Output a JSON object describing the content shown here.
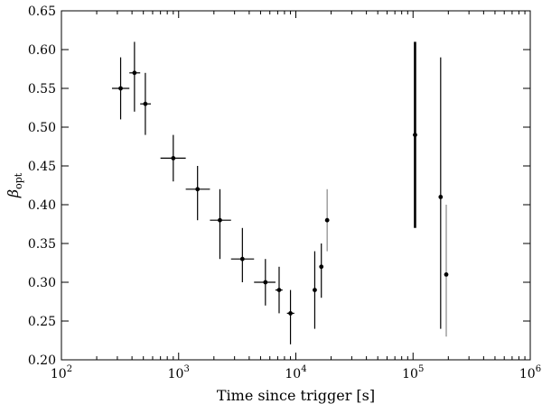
{
  "chart_data": {
    "type": "scatter",
    "xscale": "log",
    "xlim": [
      100,
      1000000
    ],
    "ylim": [
      0.2,
      0.65
    ],
    "xlabel": "Time since trigger [s]",
    "ylabel": {
      "base": "β",
      "sub": "opt"
    },
    "x_ticks": [
      {
        "base": "10",
        "exp": "2",
        "value": 100
      },
      {
        "base": "10",
        "exp": "3",
        "value": 1000
      },
      {
        "base": "10",
        "exp": "4",
        "value": 10000
      },
      {
        "base": "10",
        "exp": "5",
        "value": 100000
      },
      {
        "base": "10",
        "exp": "6",
        "value": 1000000
      }
    ],
    "y_ticks": [
      {
        "label": "0.20",
        "value": 0.2
      },
      {
        "label": "0.25",
        "value": 0.25
      },
      {
        "label": "0.30",
        "value": 0.3
      },
      {
        "label": "0.35",
        "value": 0.35
      },
      {
        "label": "0.40",
        "value": 0.4
      },
      {
        "label": "0.45",
        "value": 0.45
      },
      {
        "label": "0.50",
        "value": 0.5
      },
      {
        "label": "0.55",
        "value": 0.55
      },
      {
        "label": "0.60",
        "value": 0.6
      },
      {
        "label": "0.65",
        "value": 0.65
      }
    ],
    "grid": false,
    "points": [
      {
        "x": 320,
        "y": 0.55,
        "ylo": 0.51,
        "yhi": 0.59,
        "xlo": 270,
        "xhi": 380,
        "color": "#000000"
      },
      {
        "x": 420,
        "y": 0.57,
        "ylo": 0.52,
        "yhi": 0.61,
        "xlo": 380,
        "xhi": 470,
        "color": "#000000"
      },
      {
        "x": 520,
        "y": 0.53,
        "ylo": 0.49,
        "yhi": 0.57,
        "xlo": 470,
        "xhi": 580,
        "color": "#000000"
      },
      {
        "x": 900,
        "y": 0.46,
        "ylo": 0.43,
        "yhi": 0.49,
        "xlo": 700,
        "xhi": 1150,
        "color": "#000000"
      },
      {
        "x": 1450,
        "y": 0.42,
        "ylo": 0.38,
        "yhi": 0.45,
        "xlo": 1150,
        "xhi": 1850,
        "color": "#000000"
      },
      {
        "x": 2250,
        "y": 0.38,
        "ylo": 0.33,
        "yhi": 0.42,
        "xlo": 1850,
        "xhi": 2800,
        "color": "#000000"
      },
      {
        "x": 3500,
        "y": 0.33,
        "ylo": 0.3,
        "yhi": 0.37,
        "xlo": 2800,
        "xhi": 4400,
        "color": "#000000"
      },
      {
        "x": 5500,
        "y": 0.3,
        "ylo": 0.27,
        "yhi": 0.33,
        "xlo": 4400,
        "xhi": 6700,
        "color": "#000000"
      },
      {
        "x": 7200,
        "y": 0.29,
        "ylo": 0.26,
        "yhi": 0.32,
        "xlo": 6700,
        "xhi": 7700,
        "color": "#000000"
      },
      {
        "x": 9000,
        "y": 0.26,
        "ylo": 0.22,
        "yhi": 0.29,
        "xlo": 8400,
        "xhi": 9700,
        "color": "#000000"
      },
      {
        "x": 14500,
        "y": 0.29,
        "ylo": 0.24,
        "yhi": 0.34,
        "color": "#000000"
      },
      {
        "x": 16500,
        "y": 0.32,
        "ylo": 0.28,
        "yhi": 0.35,
        "color": "#000000"
      },
      {
        "x": 18500,
        "y": 0.38,
        "ylo": 0.34,
        "yhi": 0.42,
        "color": "#888888"
      },
      {
        "x": 104000,
        "y": 0.49,
        "ylo": 0.37,
        "yhi": 0.61,
        "color": "#000000",
        "thick": true
      },
      {
        "x": 172000,
        "y": 0.41,
        "ylo": 0.24,
        "yhi": 0.59,
        "color": "#000000"
      },
      {
        "x": 192000,
        "y": 0.31,
        "ylo": 0.23,
        "yhi": 0.4,
        "color": "#888888"
      }
    ]
  }
}
